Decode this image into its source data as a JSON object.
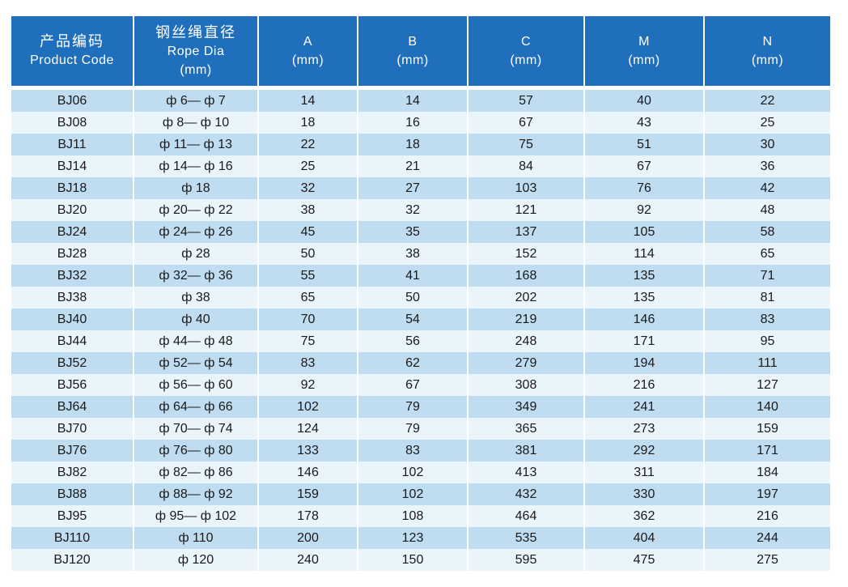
{
  "table": {
    "headers": [
      {
        "key": "code",
        "lines": [
          "产品编码",
          "Product Code"
        ]
      },
      {
        "key": "rope",
        "lines": [
          "钢丝绳直径",
          "Rope Dia",
          "(mm)"
        ]
      },
      {
        "key": "a",
        "lines": [
          "A",
          "(mm)"
        ]
      },
      {
        "key": "b",
        "lines": [
          "B",
          "(mm)"
        ]
      },
      {
        "key": "c",
        "lines": [
          "C",
          "(mm)"
        ]
      },
      {
        "key": "m",
        "lines": [
          "M",
          "(mm)"
        ]
      },
      {
        "key": "n",
        "lines": [
          "N",
          "(mm)"
        ]
      }
    ],
    "rows": [
      [
        "BJ06",
        "ф 6— ф 7",
        "14",
        "14",
        "57",
        "40",
        "22"
      ],
      [
        "BJ08",
        "ф 8— ф 10",
        "18",
        "16",
        "67",
        "43",
        "25"
      ],
      [
        "BJ11",
        "ф 11— ф 13",
        "22",
        "18",
        "75",
        "51",
        "30"
      ],
      [
        "BJ14",
        "ф 14— ф 16",
        "25",
        "21",
        "84",
        "67",
        "36"
      ],
      [
        "BJ18",
        "ф 18",
        "32",
        "27",
        "103",
        "76",
        "42"
      ],
      [
        "BJ20",
        "ф 20— ф 22",
        "38",
        "32",
        "121",
        "92",
        "48"
      ],
      [
        "BJ24",
        "ф 24— ф 26",
        "45",
        "35",
        "137",
        "105",
        "58"
      ],
      [
        "BJ28",
        "ф 28",
        "50",
        "38",
        "152",
        "114",
        "65"
      ],
      [
        "BJ32",
        "ф 32— ф 36",
        "55",
        "41",
        "168",
        "135",
        "71"
      ],
      [
        "BJ38",
        "ф 38",
        "65",
        "50",
        "202",
        "135",
        "81"
      ],
      [
        "BJ40",
        "ф 40",
        "70",
        "54",
        "219",
        "146",
        "83"
      ],
      [
        "BJ44",
        "ф 44— ф 48",
        "75",
        "56",
        "248",
        "171",
        "95"
      ],
      [
        "BJ52",
        "ф 52— ф 54",
        "83",
        "62",
        "279",
        "194",
        "111"
      ],
      [
        "BJ56",
        "ф 56— ф 60",
        "92",
        "67",
        "308",
        "216",
        "127"
      ],
      [
        "BJ64",
        "ф 64— ф 66",
        "102",
        "79",
        "349",
        "241",
        "140"
      ],
      [
        "BJ70",
        "ф 70— ф 74",
        "124",
        "79",
        "365",
        "273",
        "159"
      ],
      [
        "BJ76",
        "ф 76— ф 80",
        "133",
        "83",
        "381",
        "292",
        "171"
      ],
      [
        "BJ82",
        "ф 82— ф 86",
        "146",
        "102",
        "413",
        "311",
        "184"
      ],
      [
        "BJ88",
        "ф 88— ф 92",
        "159",
        "102",
        "432",
        "330",
        "197"
      ],
      [
        "BJ95",
        "ф 95— ф 102",
        "178",
        "108",
        "464",
        "362",
        "216"
      ],
      [
        "BJ110",
        "ф 110",
        "200",
        "123",
        "535",
        "404",
        "244"
      ],
      [
        "BJ120",
        "ф 120",
        "240",
        "150",
        "595",
        "475",
        "275"
      ]
    ]
  },
  "colors": {
    "header": "#1f6fbd",
    "row_dark": "#bfdcf1",
    "row_light": "#e9f4fb"
  }
}
